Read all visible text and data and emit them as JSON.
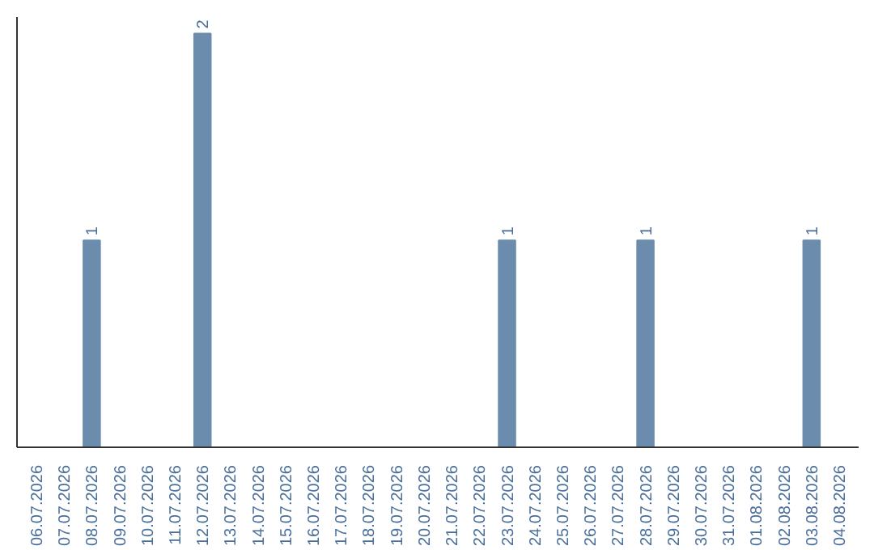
{
  "chart_data": {
    "type": "bar",
    "categories": [
      "06.07.2026",
      "07.07.2026",
      "08.07.2026",
      "09.07.2026",
      "10.07.2026",
      "11.07.2026",
      "12.07.2026",
      "13.07.2026",
      "14.07.2026",
      "15.07.2026",
      "16.07.2026",
      "17.07.2026",
      "18.07.2026",
      "19.07.2026",
      "20.07.2026",
      "21.07.2026",
      "22.07.2026",
      "23.07.2026",
      "24.07.2026",
      "25.07.2026",
      "26.07.2026",
      "27.07.2026",
      "28.07.2026",
      "29.07.2026",
      "30.07.2026",
      "31.07.2026",
      "01.08.2026",
      "02.08.2026",
      "03.08.2026",
      "04.08.2026"
    ],
    "values": [
      0,
      0,
      1,
      0,
      0,
      0,
      2,
      0,
      0,
      0,
      0,
      0,
      0,
      0,
      0,
      0,
      0,
      1,
      0,
      0,
      0,
      0,
      1,
      0,
      0,
      0,
      0,
      0,
      1,
      0
    ],
    "value_labels": [
      null,
      null,
      "1",
      null,
      null,
      null,
      "2",
      null,
      null,
      null,
      null,
      null,
      null,
      null,
      null,
      null,
      null,
      "1",
      null,
      null,
      null,
      null,
      "1",
      null,
      null,
      null,
      null,
      null,
      "1",
      null
    ],
    "color": "#6b8cad",
    "tick_labels": "x",
    "grid": false
  }
}
